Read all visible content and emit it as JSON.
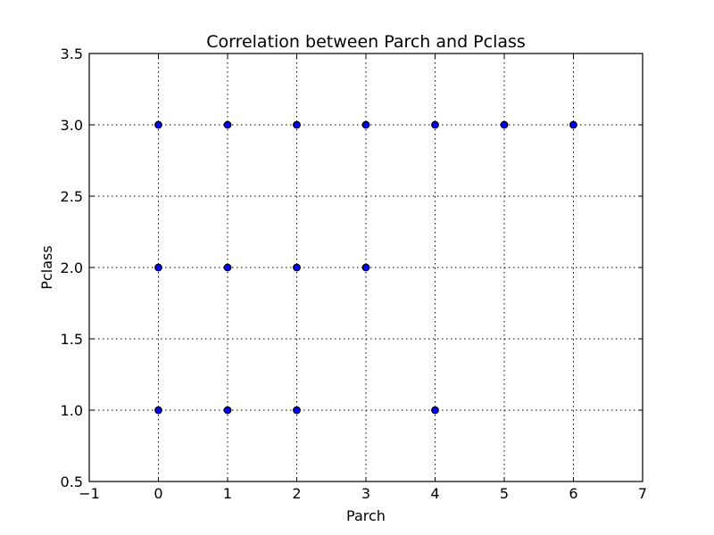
{
  "chart_data": {
    "type": "scatter",
    "title": "Correlation between Parch and Pclass",
    "xlabel": "Parch",
    "ylabel": "Pclass",
    "xlim": [
      -1,
      7
    ],
    "ylim": [
      0.5,
      3.5
    ],
    "xticks": [
      -1,
      0,
      1,
      2,
      3,
      4,
      5,
      6,
      7
    ],
    "xtick_labels": [
      "−1",
      "0",
      "1",
      "2",
      "3",
      "4",
      "5",
      "6",
      "7"
    ],
    "yticks": [
      0.5,
      1.0,
      1.5,
      2.0,
      2.5,
      3.0,
      3.5
    ],
    "ytick_labels": [
      "0.5",
      "1.0",
      "1.5",
      "2.0",
      "2.5",
      "3.0",
      "3.5"
    ],
    "grid": true,
    "marker_color": "#0000ff",
    "marker_edge_color": "#000000",
    "points": [
      {
        "x": 0,
        "y": 3
      },
      {
        "x": 1,
        "y": 3
      },
      {
        "x": 2,
        "y": 3
      },
      {
        "x": 3,
        "y": 3
      },
      {
        "x": 4,
        "y": 3
      },
      {
        "x": 5,
        "y": 3
      },
      {
        "x": 6,
        "y": 3
      },
      {
        "x": 0,
        "y": 2
      },
      {
        "x": 1,
        "y": 2
      },
      {
        "x": 2,
        "y": 2
      },
      {
        "x": 3,
        "y": 2
      },
      {
        "x": 0,
        "y": 1
      },
      {
        "x": 1,
        "y": 1
      },
      {
        "x": 2,
        "y": 1
      },
      {
        "x": 4,
        "y": 1
      }
    ]
  }
}
